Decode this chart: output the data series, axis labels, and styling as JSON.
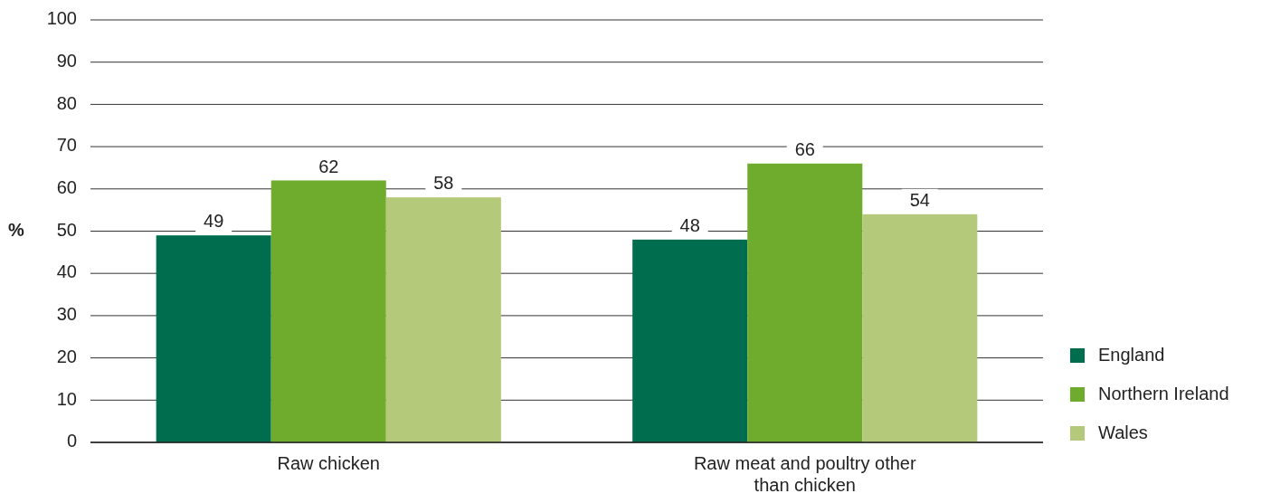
{
  "chart_data": {
    "type": "bar",
    "ylabel": "%",
    "categories": [
      "Raw chicken",
      "Raw meat and poultry other than chicken"
    ],
    "series": [
      {
        "name": "England",
        "color": "#006e4e",
        "values": [
          49,
          48
        ]
      },
      {
        "name": "Northern Ireland",
        "color": "#6fac2e",
        "values": [
          62,
          66
        ]
      },
      {
        "name": "Wales",
        "color": "#b5c97a",
        "values": [
          58,
          54
        ]
      }
    ],
    "ylim": [
      0,
      100
    ],
    "yticks": [
      0,
      10,
      20,
      30,
      40,
      50,
      60,
      70,
      80,
      90,
      100
    ],
    "grid": "y",
    "legend": "right",
    "data_labels": true
  }
}
